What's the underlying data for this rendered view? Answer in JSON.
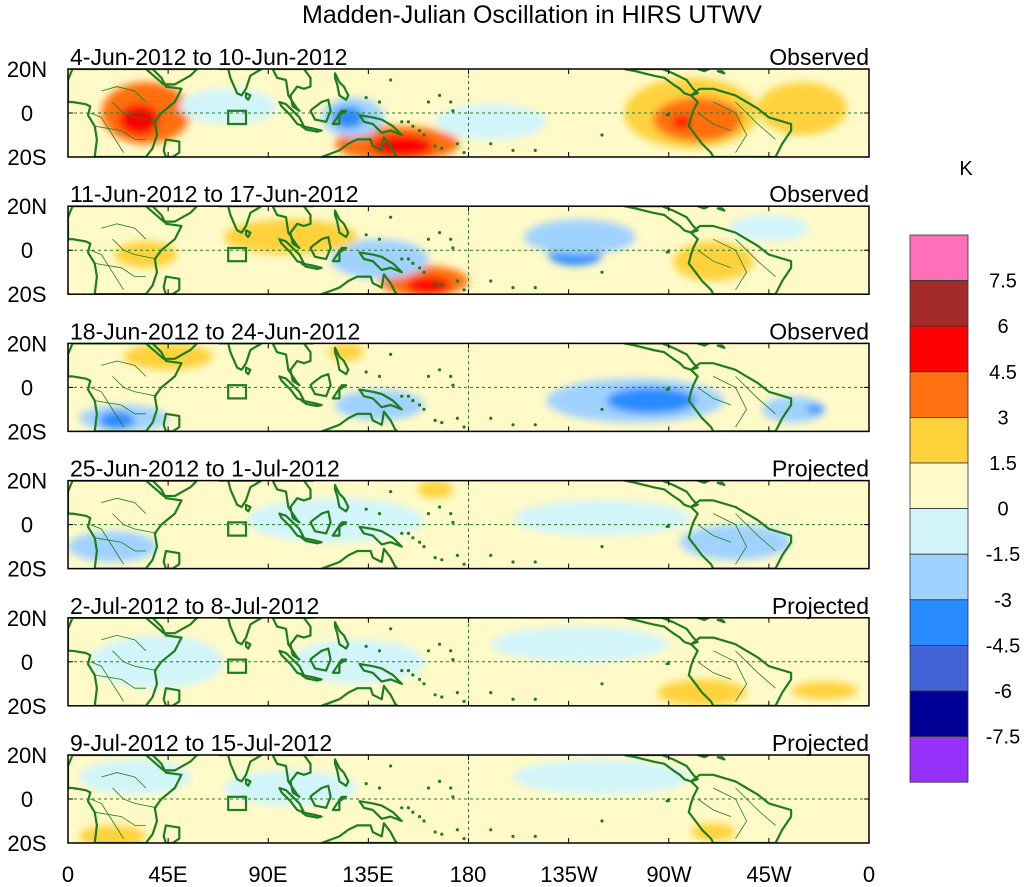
{
  "title": "Madden-Julian Oscillation in HIRS UTWV",
  "panels": [
    {
      "label": "4-Jun-2012 to 10-Jun-2012",
      "status": "Observed"
    },
    {
      "label": "11-Jun-2012 to 17-Jun-2012",
      "status": "Observed"
    },
    {
      "label": "18-Jun-2012 to 24-Jun-2012",
      "status": "Observed"
    },
    {
      "label": "25-Jun-2012 to 1-Jul-2012",
      "status": "Projected"
    },
    {
      "label": "2-Jul-2012 to 8-Jul-2012",
      "status": "Projected"
    },
    {
      "label": "9-Jul-2012 to 15-Jul-2012",
      "status": "Projected"
    }
  ],
  "lat_labels": [
    "20N",
    "0",
    "20S"
  ],
  "lon_labels": [
    "0",
    "45E",
    "90E",
    "135E",
    "180",
    "135W",
    "90W",
    "45W",
    "0"
  ],
  "colorbar": {
    "unit": "K",
    "labels": [
      "7.5",
      "6",
      "4.5",
      "3",
      "1.5",
      "0",
      "-1.5",
      "-3",
      "-4.5",
      "-6",
      "-7.5"
    ],
    "colors": [
      "#ff70b8",
      "#a52a2a",
      "#ff0000",
      "#ff7010",
      "#ffd23c",
      "#fffac8",
      "#d2f5fa",
      "#a0d2ff",
      "#288cff",
      "#4364d8",
      "#000096",
      "#9632fa"
    ]
  },
  "colors": {
    "coast": "#1e7d1e",
    "background_anomaly": "#fffac8"
  },
  "blobs": [
    [
      {
        "lon": 35,
        "lat": 0,
        "rx": 20,
        "ry": 14,
        "c": 3
      },
      {
        "lon": 32,
        "lat": -3,
        "rx": 9,
        "ry": 7,
        "c": 2
      },
      {
        "lon": 148,
        "lat": -14,
        "rx": 28,
        "ry": 8,
        "c": 3
      },
      {
        "lon": 150,
        "lat": -15,
        "rx": 14,
        "ry": 5,
        "c": 2
      },
      {
        "lon": 128,
        "lat": -2,
        "rx": 14,
        "ry": 9,
        "c": 7
      },
      {
        "lon": 126,
        "lat": -2,
        "rx": 7,
        "ry": 5,
        "c": 8
      },
      {
        "lon": 280,
        "lat": 0,
        "rx": 30,
        "ry": 16,
        "c": 4
      },
      {
        "lon": 283,
        "lat": -3,
        "rx": 20,
        "ry": 10,
        "c": 3
      },
      {
        "lon": 276,
        "lat": -4,
        "rx": 4,
        "ry": 3,
        "c": 2
      },
      {
        "lon": 72,
        "lat": 3,
        "rx": 22,
        "ry": 8,
        "c": 6
      },
      {
        "lon": 190,
        "lat": -4,
        "rx": 25,
        "ry": 8,
        "c": 6
      },
      {
        "lon": 330,
        "lat": 2,
        "rx": 20,
        "ry": 12,
        "c": 4
      }
    ],
    [
      {
        "lon": 35,
        "lat": -2,
        "rx": 14,
        "ry": 6,
        "c": 4
      },
      {
        "lon": 160,
        "lat": -14,
        "rx": 20,
        "ry": 7,
        "c": 3
      },
      {
        "lon": 162,
        "lat": -16,
        "rx": 10,
        "ry": 4,
        "c": 2
      },
      {
        "lon": 140,
        "lat": -4,
        "rx": 22,
        "ry": 9,
        "c": 7
      },
      {
        "lon": 228,
        "lat": -2,
        "rx": 12,
        "ry": 5,
        "c": 8
      },
      {
        "lon": 230,
        "lat": 6,
        "rx": 25,
        "ry": 8,
        "c": 7
      },
      {
        "lon": 290,
        "lat": -5,
        "rx": 18,
        "ry": 9,
        "c": 4
      },
      {
        "lon": 100,
        "lat": 6,
        "rx": 30,
        "ry": 8,
        "c": 4
      },
      {
        "lon": 315,
        "lat": 10,
        "rx": 18,
        "ry": 6,
        "c": 6
      }
    ],
    [
      {
        "lon": 45,
        "lat": 14,
        "rx": 20,
        "ry": 6,
        "c": 4
      },
      {
        "lon": 255,
        "lat": -6,
        "rx": 40,
        "ry": 10,
        "c": 7
      },
      {
        "lon": 262,
        "lat": -6,
        "rx": 20,
        "ry": 6,
        "c": 8
      },
      {
        "lon": 25,
        "lat": -14,
        "rx": 20,
        "ry": 6,
        "c": 7
      },
      {
        "lon": 22,
        "lat": -15,
        "rx": 8,
        "ry": 4,
        "c": 8
      },
      {
        "lon": 140,
        "lat": -8,
        "rx": 20,
        "ry": 7,
        "c": 7
      },
      {
        "lon": 80,
        "lat": -2,
        "rx": 18,
        "ry": 5,
        "c": 5
      },
      {
        "lon": 125,
        "lat": 16,
        "rx": 8,
        "ry": 4,
        "c": 4
      },
      {
        "lon": 326,
        "lat": -10,
        "rx": 14,
        "ry": 6,
        "c": 7
      },
      {
        "lon": 336,
        "lat": -10,
        "rx": 4,
        "ry": 2,
        "c": 8
      }
    ],
    [
      {
        "lon": 120,
        "lat": 2,
        "rx": 40,
        "ry": 10,
        "c": 6
      },
      {
        "lon": 20,
        "lat": -10,
        "rx": 20,
        "ry": 7,
        "c": 7
      },
      {
        "lon": 240,
        "lat": 3,
        "rx": 40,
        "ry": 8,
        "c": 6
      },
      {
        "lon": 300,
        "lat": -8,
        "rx": 25,
        "ry": 8,
        "c": 7
      },
      {
        "lon": 165,
        "lat": 16,
        "rx": 8,
        "ry": 4,
        "c": 4
      },
      {
        "lon": 200,
        "lat": -10,
        "rx": 30,
        "ry": 6,
        "c": 5
      }
    ],
    [
      {
        "lon": 40,
        "lat": 0,
        "rx": 30,
        "ry": 12,
        "c": 6
      },
      {
        "lon": 130,
        "lat": 0,
        "rx": 30,
        "ry": 10,
        "c": 6
      },
      {
        "lon": 285,
        "lat": -14,
        "rx": 20,
        "ry": 6,
        "c": 4
      },
      {
        "lon": 340,
        "lat": -13,
        "rx": 15,
        "ry": 4,
        "c": 4
      },
      {
        "lon": 230,
        "lat": 8,
        "rx": 40,
        "ry": 8,
        "c": 6
      }
    ],
    [
      {
        "lon": 20,
        "lat": -17,
        "rx": 15,
        "ry": 5,
        "c": 4
      },
      {
        "lon": 30,
        "lat": 10,
        "rx": 25,
        "ry": 8,
        "c": 6
      },
      {
        "lon": 290,
        "lat": -15,
        "rx": 10,
        "ry": 4,
        "c": 4
      },
      {
        "lon": 240,
        "lat": 10,
        "rx": 40,
        "ry": 8,
        "c": 6
      },
      {
        "lon": 100,
        "lat": 5,
        "rx": 30,
        "ry": 8,
        "c": 6
      }
    ]
  ]
}
